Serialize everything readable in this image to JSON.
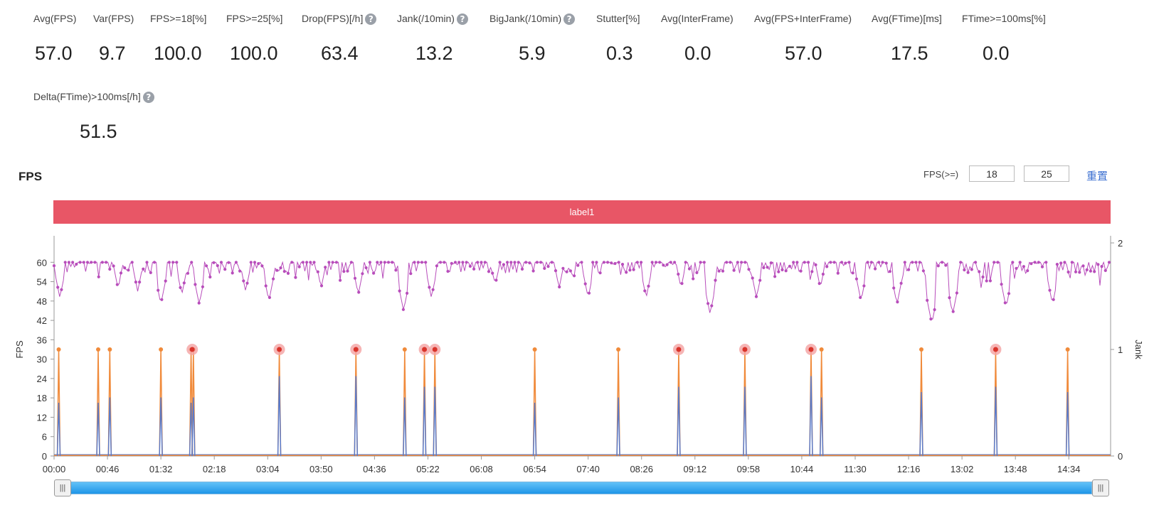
{
  "metrics": [
    {
      "label": "Avg(FPS)",
      "value": "57.0",
      "help": false
    },
    {
      "label": "Var(FPS)",
      "value": "9.7",
      "help": false
    },
    {
      "label": "FPS>=18[%]",
      "value": "100.0",
      "help": false
    },
    {
      "label": "FPS>=25[%]",
      "value": "100.0",
      "help": false
    },
    {
      "label": "Drop(FPS)[/h]",
      "value": "63.4",
      "help": true
    },
    {
      "label": "Jank(/10min)",
      "value": "13.2",
      "help": true
    },
    {
      "label": "BigJank(/10min)",
      "value": "5.9",
      "help": true
    },
    {
      "label": "Stutter[%]",
      "value": "0.3",
      "help": false
    },
    {
      "label": "Avg(InterFrame)",
      "value": "0.0",
      "help": false
    },
    {
      "label": "Avg(FPS+InterFrame)",
      "value": "57.0",
      "help": false
    },
    {
      "label": "Avg(FTime)[ms]",
      "value": "17.5",
      "help": false
    },
    {
      "label": "FTime>=100ms[%]",
      "value": "0.0",
      "help": false
    },
    {
      "label": "Delta(FTime)>100ms[/h]",
      "value": "51.5",
      "help": true
    }
  ],
  "help_glyph": "?",
  "chart_title": "FPS",
  "fps_threshold": {
    "label": "FPS(>=)",
    "low": "18",
    "high": "25"
  },
  "reset_label": "重置",
  "label_bar": "label1",
  "slider": {
    "handle_glyph": "|||",
    "start": 0.0,
    "end": 1.0
  },
  "colors": {
    "fps": "#b84dbb",
    "jank": "#f08a3a",
    "frametime": "#5b7bc9",
    "bigjank_halo": "#f4a3a3",
    "bigjank_dot": "#d9342b",
    "label_bar": "#e85666",
    "accent": "#3b6fd1"
  },
  "chart_data": {
    "type": "line",
    "title": "",
    "xlabel": "",
    "ylabel": "FPS",
    "y2label": "Jank",
    "duration_s": 910,
    "x_ticks": [
      "00:00",
      "00:46",
      "01:32",
      "02:18",
      "03:04",
      "03:50",
      "04:36",
      "05:22",
      "06:08",
      "06:54",
      "07:40",
      "08:26",
      "09:12",
      "09:58",
      "10:44",
      "11:30",
      "12:16",
      "13:02",
      "13:48",
      "14:34"
    ],
    "ylim": [
      0,
      66
    ],
    "y_ticks": [
      0,
      6,
      12,
      18,
      24,
      30,
      36,
      42,
      48,
      54,
      60
    ],
    "y2lim": [
      0,
      2
    ],
    "y2_ticks": [
      0,
      1,
      2
    ],
    "jank_times": [
      "00:04",
      "00:38",
      "00:48",
      "01:32",
      "01:58",
      "02:00",
      "03:14",
      "04:20",
      "05:02",
      "05:19",
      "05:28",
      "06:54",
      "08:06",
      "08:58",
      "09:55",
      "10:52",
      "11:01",
      "12:27",
      "13:31",
      "14:33"
    ],
    "bigjank_times": [
      "01:59",
      "03:14",
      "04:20",
      "05:19",
      "05:28",
      "08:58",
      "09:55",
      "10:52",
      "13:31"
    ],
    "frametime_peaks": [
      0.5,
      0.5,
      0.55,
      0.55,
      0.5,
      0.55,
      0.75,
      0.75,
      0.55,
      0.65,
      0.65,
      0.5,
      0.55,
      0.65,
      0.65,
      0.75,
      0.55,
      0.6,
      0.65,
      0.6
    ],
    "fps_series": {
      "name": "FPS",
      "sample_interval_s": 1,
      "nominal": 60,
      "min_observed": 41,
      "dips": [
        {
          "t": "00:05",
          "fps": 49
        },
        {
          "t": "00:55",
          "fps": 52
        },
        {
          "t": "01:12",
          "fps": 51
        },
        {
          "t": "01:32",
          "fps": 47
        },
        {
          "t": "01:50",
          "fps": 50
        },
        {
          "t": "02:05",
          "fps": 47
        },
        {
          "t": "02:45",
          "fps": 51
        },
        {
          "t": "03:05",
          "fps": 48
        },
        {
          "t": "03:50",
          "fps": 52
        },
        {
          "t": "04:22",
          "fps": 50
        },
        {
          "t": "05:01",
          "fps": 45
        },
        {
          "t": "05:25",
          "fps": 49
        },
        {
          "t": "06:20",
          "fps": 53
        },
        {
          "t": "07:15",
          "fps": 52
        },
        {
          "t": "07:40",
          "fps": 49
        },
        {
          "t": "08:30",
          "fps": 49
        },
        {
          "t": "09:00",
          "fps": 52
        },
        {
          "t": "09:25",
          "fps": 44
        },
        {
          "t": "10:05",
          "fps": 49
        },
        {
          "t": "11:00",
          "fps": 52
        },
        {
          "t": "11:35",
          "fps": 48
        },
        {
          "t": "12:06",
          "fps": 47
        },
        {
          "t": "12:36",
          "fps": 41
        },
        {
          "t": "12:54",
          "fps": 44
        },
        {
          "t": "13:40",
          "fps": 46
        },
        {
          "t": "14:20",
          "fps": 47
        },
        {
          "t": "14:48",
          "fps": 56
        },
        {
          "t": "15:00",
          "fps": 58
        }
      ]
    }
  }
}
